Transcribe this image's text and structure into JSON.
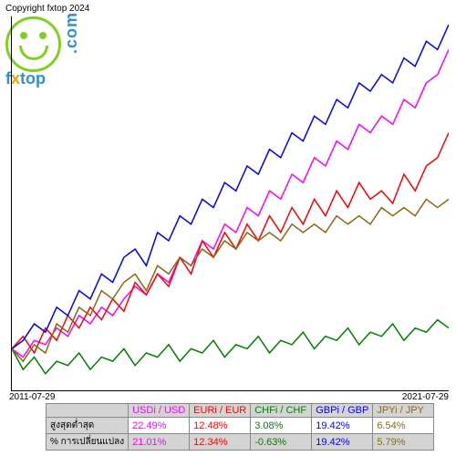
{
  "copyright": "Copyright fxtop 2024",
  "logo": {
    "brand_f": "f",
    "brand_x": "x",
    "brand_top": "top",
    "dotcom": ".com"
  },
  "chart": {
    "type": "line",
    "xlim": [
      "2011-07-29",
      "2021-07-29"
    ],
    "ylim": [
      -10,
      80
    ],
    "background_color": "#ffffff",
    "axis_color": "#000000",
    "series": [
      {
        "name": "USDi/USD",
        "color": "#ff00ff",
        "values": [
          0,
          -2,
          2,
          1,
          5,
          3,
          8,
          6,
          10,
          8,
          12,
          15,
          13,
          18,
          16,
          22,
          20,
          26,
          24,
          30,
          28,
          34,
          32,
          38,
          36,
          42,
          40,
          46,
          44,
          50,
          48,
          54,
          52,
          56,
          54,
          60,
          58,
          64,
          66,
          72
        ]
      },
      {
        "name": "EURi/EUR",
        "color": "#ff0000",
        "values": [
          0,
          3,
          -1,
          5,
          2,
          8,
          5,
          10,
          7,
          12,
          9,
          16,
          13,
          18,
          15,
          22,
          18,
          26,
          22,
          28,
          24,
          30,
          26,
          32,
          28,
          34,
          30,
          36,
          32,
          38,
          34,
          40,
          36,
          38,
          35,
          42,
          38,
          44,
          46,
          52
        ]
      },
      {
        "name": "CHFi/CHF",
        "color": "#008000",
        "values": [
          0,
          -5,
          -2,
          -6,
          -3,
          -4,
          -1,
          -5,
          -2,
          -3,
          0,
          -4,
          -1,
          -2,
          1,
          -3,
          0,
          -1,
          2,
          -2,
          1,
          0,
          3,
          -1,
          2,
          1,
          4,
          0,
          3,
          2,
          5,
          1,
          4,
          3,
          6,
          2,
          5,
          4,
          7,
          5
        ]
      },
      {
        "name": "GBPi/GBP",
        "color": "#0000ff",
        "values": [
          0,
          2,
          6,
          4,
          10,
          8,
          14,
          12,
          18,
          16,
          22,
          24,
          20,
          28,
          26,
          32,
          30,
          36,
          34,
          40,
          38,
          44,
          42,
          48,
          46,
          52,
          50,
          56,
          54,
          60,
          58,
          64,
          62,
          66,
          64,
          70,
          68,
          74,
          72,
          78
        ]
      },
      {
        "name": "JPYi/JPY",
        "color": "#8b6914",
        "values": [
          0,
          -3,
          1,
          -1,
          6,
          4,
          10,
          8,
          14,
          12,
          16,
          18,
          14,
          20,
          18,
          22,
          20,
          24,
          22,
          26,
          24,
          28,
          26,
          28,
          26,
          30,
          28,
          30,
          28,
          32,
          30,
          32,
          30,
          34,
          32,
          34,
          32,
          36,
          34,
          36
        ]
      }
    ]
  },
  "x_axis": {
    "start": "2011-07-29",
    "end": "2021-07-29"
  },
  "table": {
    "columns": [
      {
        "label": "USDi / USD",
        "color": "#ff00ff"
      },
      {
        "label": "EURi / EUR",
        "color": "#ff0000"
      },
      {
        "label": "CHFi / CHF",
        "color": "#008000"
      },
      {
        "label": "GBPi / GBP",
        "color": "#0000ff"
      },
      {
        "label": "JPYi / JPY",
        "color": "#8b6914"
      }
    ],
    "rows": [
      {
        "label": "สูงสุดต่ำสุด",
        "values": [
          "22.49%",
          "12.48%",
          "3.08%",
          "19.42%",
          "6.54%"
        ]
      },
      {
        "label": "% การเปลี่ยนแปลง",
        "values": [
          "21.01%",
          "12.34%",
          "-0.63%",
          "19.42%",
          "5.79%"
        ]
      }
    ]
  }
}
